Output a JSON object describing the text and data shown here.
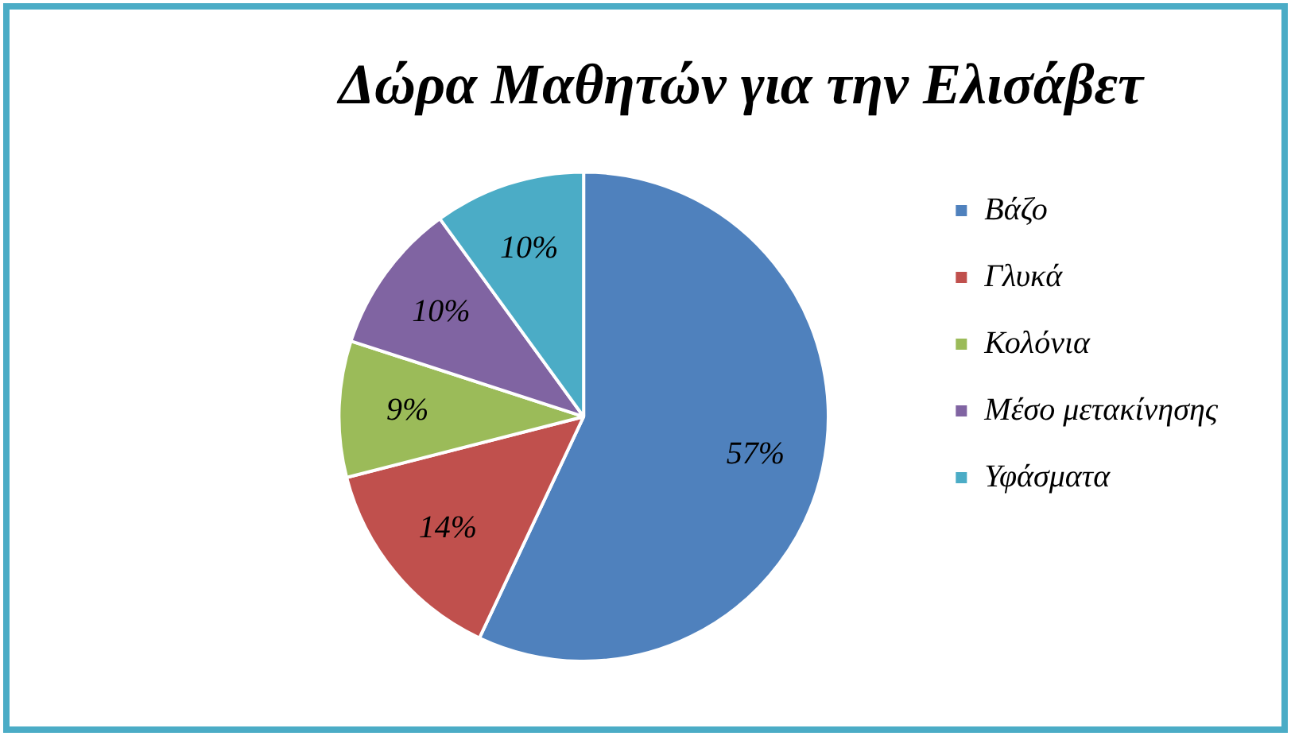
{
  "chart_data": {
    "type": "pie",
    "title": "Δώρα Μαθητών για την Ελισάβετ",
    "categories": [
      "Βάζο",
      "Γλυκά",
      "Κολόνια",
      "Μέσο μετακίνησης",
      "Υφάσματα"
    ],
    "values": [
      57,
      14,
      9,
      10,
      10
    ],
    "colors": [
      "#4f81bd",
      "#c0504d",
      "#9bbb59",
      "#8064a2",
      "#4bacc6"
    ],
    "value_labels": [
      "57%",
      "14%",
      "9%",
      "10%",
      "10%"
    ],
    "legend": "right"
  }
}
